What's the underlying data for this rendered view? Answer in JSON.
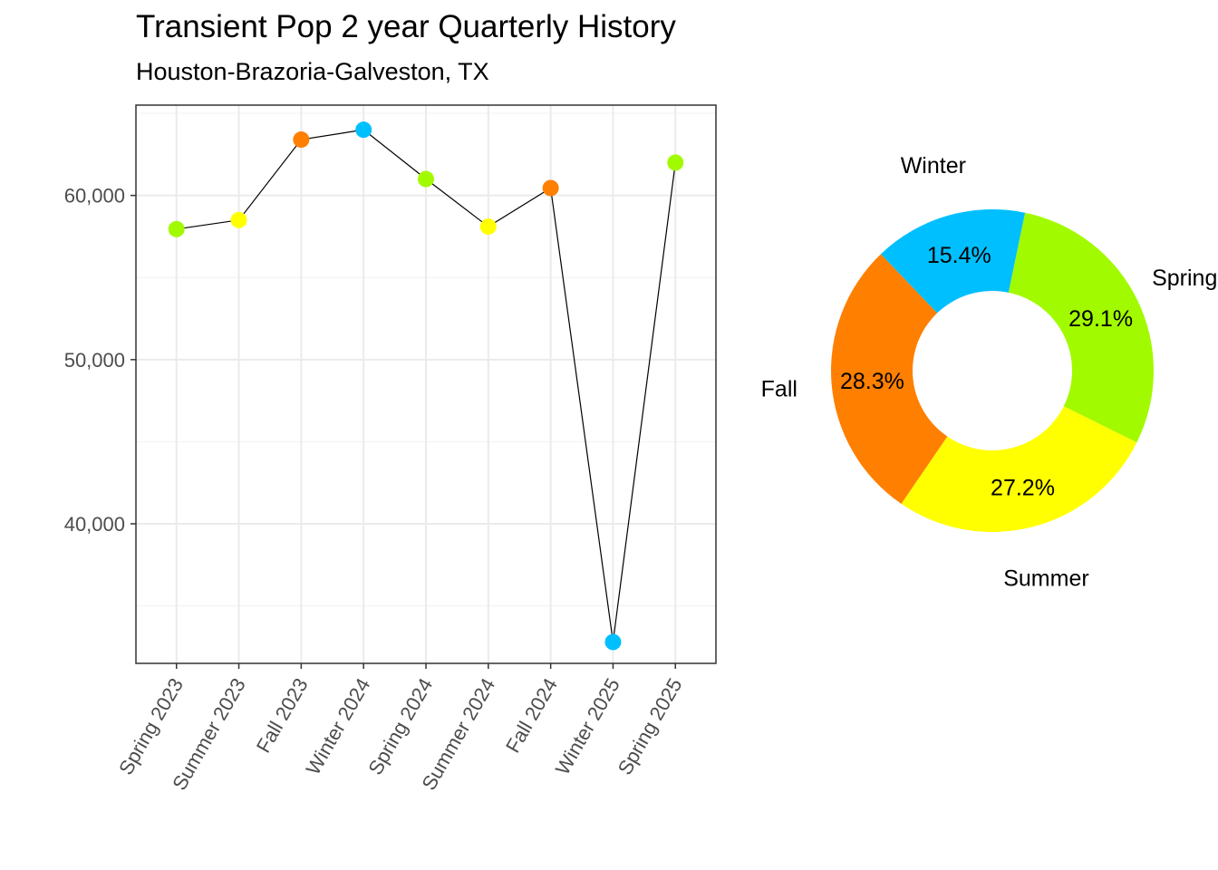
{
  "title": "Transient Pop 2 year Quarterly History",
  "subtitle": "Houston-Brazoria-Galveston, TX",
  "season_colors": {
    "Spring": "#A2FA00",
    "Summer": "#FFFF00",
    "Fall": "#FF7F00",
    "Winter": "#00BFFF"
  },
  "chart_data": [
    {
      "type": "line",
      "categories": [
        "Spring 2023",
        "Summer 2023",
        "Fall 2023",
        "Winter 2024",
        "Spring 2024",
        "Summer 2024",
        "Fall 2024",
        "Winter 2025",
        "Spring 2025"
      ],
      "seasons": [
        "Spring",
        "Summer",
        "Fall",
        "Winter",
        "Spring",
        "Summer",
        "Fall",
        "Winter",
        "Spring"
      ],
      "values": [
        57950,
        58500,
        63400,
        64000,
        61000,
        58100,
        60450,
        32800,
        62000
      ],
      "ylim": [
        31500,
        65500
      ],
      "yticks": [
        40000,
        50000,
        60000
      ],
      "ytick_labels": [
        "40,000",
        "50,000",
        "60,000"
      ],
      "xlabel": "",
      "ylabel": "",
      "grid": true
    },
    {
      "type": "pie",
      "donut": true,
      "slices": [
        {
          "label": "Spring",
          "percent": 29.1,
          "percent_label": "29.1%"
        },
        {
          "label": "Summer",
          "percent": 27.2,
          "percent_label": "27.2%"
        },
        {
          "label": "Fall",
          "percent": 28.3,
          "percent_label": "28.3%"
        },
        {
          "label": "Winter",
          "percent": 15.4,
          "percent_label": "15.4%"
        }
      ]
    }
  ]
}
